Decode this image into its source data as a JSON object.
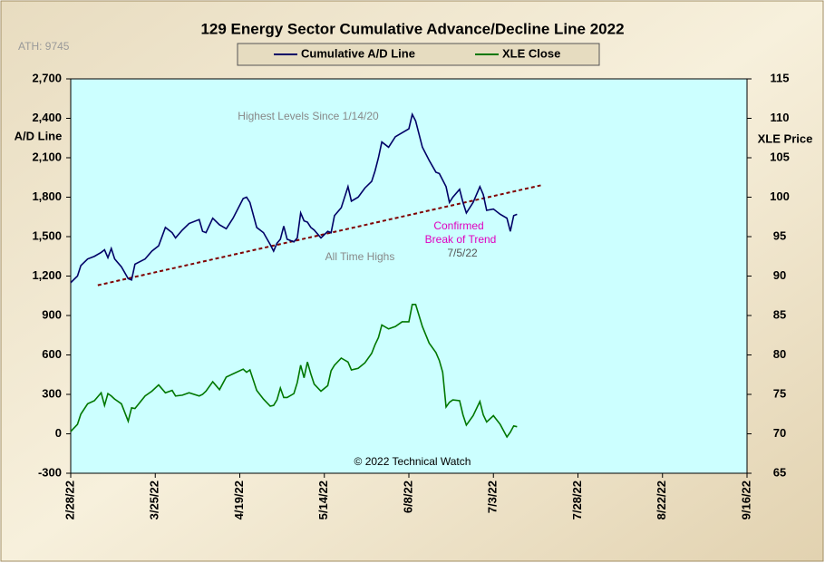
{
  "chart_data": {
    "type": "line",
    "title": "129 Energy Sector Cumulative Advance/Decline Line 2022",
    "y_label": "A/D Line",
    "y2_label": "XLE Price",
    "annotations": [
      "ATH: 9745",
      "Highest Levels Since 1/14/20",
      "All Time Highs",
      "Confirmed",
      "Break of Trend",
      "7/5/22",
      "© 2022 Technical Watch"
    ],
    "xlim": [
      "2022-02-28",
      "2022-09-16"
    ],
    "xticks": [
      {
        "value": "2022-02-28",
        "label": "2/28/22"
      },
      {
        "value": "2022-03-25",
        "label": "3/25/22"
      },
      {
        "value": "2022-04-19",
        "label": "4/19/22"
      },
      {
        "value": "2022-05-14",
        "label": "5/14/22"
      },
      {
        "value": "2022-06-08",
        "label": "6/8/22"
      },
      {
        "value": "2022-07-03",
        "label": "7/3/22"
      },
      {
        "value": "2022-07-28",
        "label": "7/28/22"
      },
      {
        "value": "2022-08-22",
        "label": "8/22/22"
      },
      {
        "value": "2022-09-16",
        "label": "9/16/22"
      }
    ],
    "ylim": [
      -300,
      2700
    ],
    "yticks": [
      {
        "value": -300,
        "label": "-300"
      },
      0,
      300,
      600,
      900,
      {
        "value": 1200,
        "label": "1,200"
      },
      {
        "value": 1500,
        "label": "1,500"
      },
      {
        "value": 1800,
        "label": "1,800"
      },
      {
        "value": 2100,
        "label": "2,100"
      },
      {
        "value": 2400,
        "label": "2,400"
      },
      {
        "value": 2700,
        "label": "2,700"
      }
    ],
    "y2lim": [
      65,
      115
    ],
    "y2ticks": [
      65,
      70,
      75,
      80,
      85,
      90,
      95,
      100,
      105,
      110,
      115
    ],
    "x": [
      "2022-02-28",
      "2022-03-02",
      "2022-03-03",
      "2022-03-05",
      "2022-03-07",
      "2022-03-09",
      "2022-03-10",
      "2022-03-11",
      "2022-03-12",
      "2022-03-13",
      "2022-03-15",
      "2022-03-17",
      "2022-03-18",
      "2022-03-19",
      "2022-03-22",
      "2022-03-24",
      "2022-03-26",
      "2022-03-28",
      "2022-03-30",
      "2022-03-31",
      "2022-04-02",
      "2022-04-04",
      "2022-04-07",
      "2022-04-08",
      "2022-04-09",
      "2022-04-11",
      "2022-04-13",
      "2022-04-15",
      "2022-04-17",
      "2022-04-20",
      "2022-04-21",
      "2022-04-22",
      "2022-04-24",
      "2022-04-26",
      "2022-04-28",
      "2022-04-29",
      "2022-04-30",
      "2022-05-01",
      "2022-05-02",
      "2022-05-03",
      "2022-05-05",
      "2022-05-06",
      "2022-05-07",
      "2022-05-08",
      "2022-05-09",
      "2022-05-10",
      "2022-05-11",
      "2022-05-13",
      "2022-05-15",
      "2022-05-16",
      "2022-05-17",
      "2022-05-19",
      "2022-05-21",
      "2022-05-22",
      "2022-05-24",
      "2022-05-26",
      "2022-05-28",
      "2022-05-29",
      "2022-05-30",
      "2022-05-31",
      "2022-06-02",
      "2022-06-04",
      "2022-06-06",
      "2022-06-08",
      "2022-06-09",
      "2022-06-10",
      "2022-06-12",
      "2022-06-14",
      "2022-06-16",
      "2022-06-17",
      "2022-06-18",
      "2022-06-19",
      "2022-06-20",
      "2022-06-21",
      "2022-06-23",
      "2022-06-24",
      "2022-06-25",
      "2022-06-27",
      "2022-06-29",
      "2022-06-30",
      "2022-07-01",
      "2022-07-03",
      "2022-07-05",
      "2022-07-07",
      "2022-07-08",
      "2022-07-09",
      "2022-07-10"
    ],
    "series": [
      {
        "name": "Cumulative A/D Line",
        "color": "#000066",
        "values": [
          1150,
          1200,
          1280,
          1330,
          1350,
          1380,
          1400,
          1340,
          1410,
          1330,
          1270,
          1180,
          1170,
          1290,
          1330,
          1390,
          1430,
          1570,
          1530,
          1490,
          1550,
          1600,
          1630,
          1540,
          1530,
          1640,
          1590,
          1560,
          1640,
          1790,
          1800,
          1760,
          1570,
          1530,
          1440,
          1390,
          1450,
          1480,
          1580,
          1480,
          1460,
          1490,
          1680,
          1620,
          1610,
          1570,
          1550,
          1490,
          1540,
          1530,
          1660,
          1720,
          1880,
          1770,
          1800,
          1870,
          1920,
          2000,
          2100,
          2220,
          2180,
          2260,
          2290,
          2320,
          2430,
          2380,
          2180,
          2080,
          1990,
          1980,
          1930,
          1880,
          1760,
          1800,
          1860,
          1760,
          1680,
          1760,
          1880,
          1820,
          1700,
          1710,
          1670,
          1640,
          1540,
          1660,
          1670
        ]
      },
      {
        "name": "XLE Close",
        "color": "#007700",
        "axis": "y2",
        "values": [
          70.3,
          71.2,
          72.5,
          73.8,
          74.2,
          75.2,
          73.6,
          75.1,
          74.8,
          74.4,
          73.8,
          71.6,
          73.3,
          73.2,
          74.8,
          75.4,
          76.2,
          75.2,
          75.5,
          74.8,
          74.9,
          75.2,
          74.8,
          75.0,
          75.4,
          76.6,
          75.6,
          77.2,
          77.6,
          78.2,
          77.8,
          78.1,
          75.5,
          74.4,
          73.5,
          73.6,
          74.3,
          75.8,
          74.6,
          74.6,
          75.1,
          76.5,
          78.7,
          77.1,
          79.1,
          77.6,
          76.3,
          75.4,
          76.1,
          78.0,
          78.7,
          79.6,
          79.1,
          78.1,
          78.3,
          79.0,
          80.2,
          81.3,
          82.2,
          83.8,
          83.3,
          83.6,
          84.2,
          84.2,
          86.4,
          86.4,
          83.6,
          81.5,
          80.3,
          79.3,
          77.8,
          73.4,
          74.0,
          74.3,
          74.2,
          72.4,
          71.1,
          72.3,
          74.1,
          72.4,
          71.5,
          72.3,
          71.2,
          69.6,
          70.2,
          71.0,
          70.9
        ]
      }
    ],
    "trend_line": {
      "color": "#800000",
      "x": [
        "2022-03-08",
        "2022-07-17"
      ],
      "values": [
        1130,
        1890
      ]
    },
    "grid": false
  }
}
